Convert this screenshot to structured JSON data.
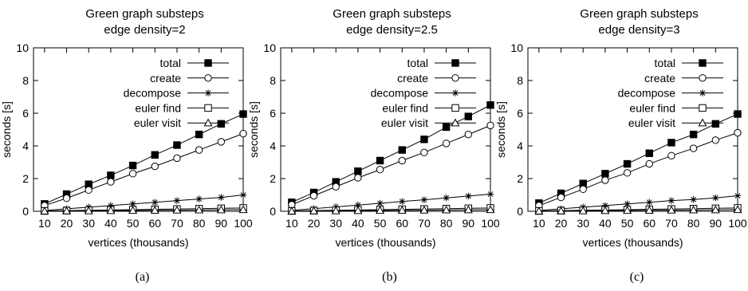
{
  "chart_data": [
    {
      "type": "line",
      "title": "Green graph substeps",
      "subtitle": "edge density=2",
      "caption": "(a)",
      "xlabel": "vertices (thousands)",
      "ylabel": "seconds [s]",
      "ylim": [
        0,
        10
      ],
      "yticks": [
        0,
        2,
        4,
        6,
        8,
        10
      ],
      "x": [
        10,
        20,
        30,
        40,
        50,
        60,
        70,
        80,
        90,
        100
      ],
      "legend_position": "top-right",
      "series": [
        {
          "name": "total",
          "marker": "filled-square",
          "values": [
            0.45,
            1.05,
            1.65,
            2.2,
            2.8,
            3.45,
            4.05,
            4.7,
            5.35,
            5.95
          ]
        },
        {
          "name": "create",
          "marker": "open-circle",
          "values": [
            0.35,
            0.8,
            1.3,
            1.8,
            2.3,
            2.75,
            3.25,
            3.75,
            4.25,
            4.75
          ]
        },
        {
          "name": "decompose",
          "marker": "star",
          "values": [
            0.05,
            0.15,
            0.25,
            0.35,
            0.45,
            0.55,
            0.65,
            0.75,
            0.85,
            1.0
          ]
        },
        {
          "name": "euler find",
          "marker": "open-square",
          "values": [
            0.02,
            0.04,
            0.06,
            0.08,
            0.1,
            0.12,
            0.14,
            0.16,
            0.18,
            0.2
          ]
        },
        {
          "name": "euler visit",
          "marker": "open-triangle",
          "values": [
            0.01,
            0.02,
            0.03,
            0.04,
            0.05,
            0.06,
            0.07,
            0.08,
            0.09,
            0.1
          ]
        }
      ]
    },
    {
      "type": "line",
      "title": "Green graph substeps",
      "subtitle": "edge density=2.5",
      "caption": "(b)",
      "xlabel": "vertices (thousands)",
      "ylabel": "seconds [s]",
      "ylim": [
        0,
        10
      ],
      "yticks": [
        0,
        2,
        4,
        6,
        8,
        10
      ],
      "x": [
        10,
        20,
        30,
        40,
        50,
        60,
        70,
        80,
        90,
        100
      ],
      "legend_position": "top-right",
      "series": [
        {
          "name": "total",
          "marker": "filled-square",
          "values": [
            0.55,
            1.15,
            1.8,
            2.45,
            3.1,
            3.75,
            4.4,
            5.15,
            5.8,
            6.5
          ]
        },
        {
          "name": "create",
          "marker": "open-circle",
          "values": [
            0.4,
            0.95,
            1.5,
            2.05,
            2.55,
            3.1,
            3.6,
            4.15,
            4.7,
            5.25
          ]
        },
        {
          "name": "decompose",
          "marker": "star",
          "values": [
            0.06,
            0.16,
            0.27,
            0.38,
            0.49,
            0.6,
            0.7,
            0.82,
            0.93,
            1.05
          ]
        },
        {
          "name": "euler find",
          "marker": "open-square",
          "values": [
            0.02,
            0.04,
            0.06,
            0.08,
            0.1,
            0.12,
            0.14,
            0.16,
            0.18,
            0.2
          ]
        },
        {
          "name": "euler visit",
          "marker": "open-triangle",
          "values": [
            0.01,
            0.02,
            0.03,
            0.04,
            0.05,
            0.06,
            0.07,
            0.08,
            0.09,
            0.1
          ]
        }
      ]
    },
    {
      "type": "line",
      "title": "Green graph substeps",
      "subtitle": "edge density=3",
      "caption": "(c)",
      "xlabel": "vertices (thousands)",
      "ylabel": "seconds [s]",
      "ylim": [
        0,
        10
      ],
      "yticks": [
        0,
        2,
        4,
        6,
        8,
        10
      ],
      "x": [
        10,
        20,
        30,
        40,
        50,
        60,
        70,
        80,
        90,
        100
      ],
      "legend_position": "top-right",
      "series": [
        {
          "name": "total",
          "marker": "filled-square",
          "values": [
            0.5,
            1.1,
            1.7,
            2.3,
            2.9,
            3.55,
            4.2,
            4.7,
            5.35,
            5.95
          ]
        },
        {
          "name": "create",
          "marker": "open-circle",
          "values": [
            0.35,
            0.85,
            1.35,
            1.9,
            2.35,
            2.9,
            3.4,
            3.85,
            4.35,
            4.8
          ]
        },
        {
          "name": "decompose",
          "marker": "star",
          "values": [
            0.05,
            0.15,
            0.25,
            0.35,
            0.45,
            0.55,
            0.65,
            0.72,
            0.82,
            0.95
          ]
        },
        {
          "name": "euler find",
          "marker": "open-square",
          "values": [
            0.02,
            0.04,
            0.06,
            0.08,
            0.1,
            0.12,
            0.14,
            0.16,
            0.18,
            0.2
          ]
        },
        {
          "name": "euler visit",
          "marker": "open-triangle",
          "values": [
            0.01,
            0.02,
            0.03,
            0.04,
            0.05,
            0.06,
            0.07,
            0.08,
            0.09,
            0.1
          ]
        }
      ]
    }
  ]
}
